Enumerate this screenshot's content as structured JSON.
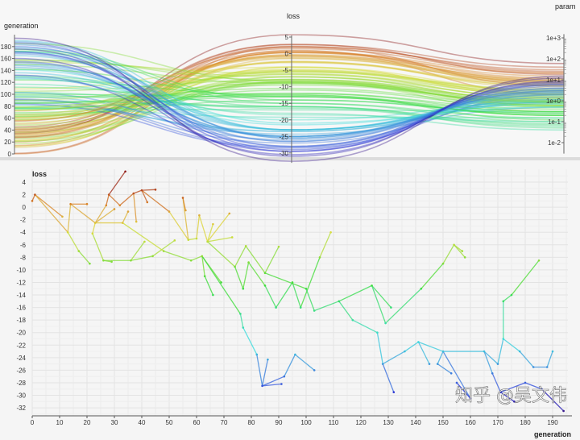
{
  "chart_data": [
    {
      "type": "parallel-coordinates",
      "axes": [
        {
          "label": "generation",
          "scale": "linear",
          "range": [
            0,
            200
          ],
          "ticks": [
            "0",
            "20",
            "40",
            "60",
            "80",
            "100",
            "120",
            "140",
            "160",
            "180"
          ]
        },
        {
          "label": "loss",
          "scale": "linear",
          "range": [
            -33,
            5
          ],
          "ticks": [
            "5",
            "0",
            "-5",
            "-10",
            "-15",
            "-20",
            "-25",
            "-30"
          ]
        },
        {
          "label": "param",
          "scale": "log",
          "range": [
            0.003,
            1000
          ],
          "ticks": [
            "1e+3",
            "1e+2",
            "1e+1",
            "1e+0",
            "1e-1",
            "1e-2"
          ]
        }
      ],
      "color_by": "loss",
      "colormap": "rainbow (red = high loss, blue/black = low loss)"
    },
    {
      "type": "scatter-tree",
      "xlabel": "generation",
      "ylabel": "loss",
      "xlim": [
        0,
        195
      ],
      "ylim": [
        -33,
        5
      ],
      "xticks": [
        "0",
        "10",
        "20",
        "30",
        "40",
        "50",
        "60",
        "70",
        "80",
        "90",
        "100",
        "110",
        "120",
        "130",
        "140",
        "150",
        "160",
        "170",
        "180",
        "190"
      ],
      "yticks": [
        "4",
        "2",
        "0",
        "-2",
        "-4",
        "-6",
        "-8",
        "-10",
        "-12",
        "-14",
        "-16",
        "-18",
        "-20",
        "-22",
        "-24",
        "-26",
        "-28",
        "-30",
        "-32"
      ],
      "grid": true,
      "color_by": "loss",
      "node_fields": [
        "generation",
        "loss",
        "param",
        "parent_index"
      ],
      "nodes": [
        [
          0,
          1,
          2,
          -1
        ],
        [
          1,
          2,
          5,
          0
        ],
        [
          11,
          -1.5,
          8,
          1
        ],
        [
          13,
          -4,
          3,
          1
        ],
        [
          14,
          0.5,
          12,
          3
        ],
        [
          20,
          0.5,
          20,
          4
        ],
        [
          23,
          -2.5,
          6,
          4
        ],
        [
          17,
          -7,
          1.5,
          3
        ],
        [
          21,
          -9,
          0.8,
          7
        ],
        [
          22,
          -4.2,
          2,
          6
        ],
        [
          26,
          -8.5,
          0.6,
          9
        ],
        [
          29,
          -8.7,
          0.3,
          10
        ],
        [
          36,
          -8.5,
          1.2,
          10
        ],
        [
          41,
          -5.5,
          2.5,
          12
        ],
        [
          44,
          -7.8,
          0.9,
          12
        ],
        [
          52,
          -5.3,
          1.8,
          14
        ],
        [
          27,
          0.3,
          15,
          6
        ],
        [
          28,
          2,
          30,
          16
        ],
        [
          34,
          5.7,
          60,
          17
        ],
        [
          32,
          0.3,
          9,
          17
        ],
        [
          37,
          2.2,
          25,
          19
        ],
        [
          40,
          2.7,
          40,
          20
        ],
        [
          45,
          2.8,
          18,
          21
        ],
        [
          42,
          0.8,
          7,
          21
        ],
        [
          38,
          -2.3,
          4,
          20
        ],
        [
          50,
          -0.7,
          6,
          21
        ],
        [
          57,
          -5.2,
          3,
          25
        ],
        [
          30,
          -0.3,
          10,
          6
        ],
        [
          33,
          -2.5,
          5,
          6
        ],
        [
          35,
          -0.7,
          8,
          28
        ],
        [
          48,
          -7,
          1,
          28
        ],
        [
          58,
          -8.5,
          0.7,
          30
        ],
        [
          62,
          -7.8,
          1.1,
          31
        ],
        [
          63,
          -11,
          0.5,
          32
        ],
        [
          66,
          -14,
          0.25,
          33
        ],
        [
          69,
          -12,
          0.4,
          32
        ],
        [
          76,
          -17,
          0.3,
          32
        ],
        [
          77,
          -19.2,
          0.15,
          36
        ],
        [
          82,
          -23.5,
          0.8,
          37
        ],
        [
          84,
          -28.5,
          2,
          38
        ],
        [
          86,
          -24.3,
          0.5,
          39
        ],
        [
          91,
          -28.2,
          4,
          39
        ],
        [
          92,
          -27,
          1.5,
          39
        ],
        [
          96,
          -23.5,
          0.9,
          42
        ],
        [
          103,
          -26,
          3,
          43
        ],
        [
          60,
          -5,
          2.2,
          26
        ],
        [
          61,
          -1.3,
          7,
          45
        ],
        [
          64,
          -5.5,
          3.5,
          46
        ],
        [
          66,
          -2.7,
          5,
          47
        ],
        [
          73,
          -4.8,
          2.8,
          47
        ],
        [
          72,
          -1,
          9,
          47
        ],
        [
          55,
          1.5,
          22,
          26
        ],
        [
          56,
          -0.5,
          11,
          51
        ],
        [
          74,
          -9.5,
          0.9,
          47
        ],
        [
          78,
          -6.2,
          2,
          53
        ],
        [
          85,
          -10.5,
          0.6,
          54
        ],
        [
          90,
          -6.3,
          1.4,
          55
        ],
        [
          77,
          -13,
          0.2,
          53
        ],
        [
          79,
          -8.8,
          0.5,
          57
        ],
        [
          85,
          -12.5,
          0.12,
          58
        ],
        [
          89,
          -16,
          0.08,
          59
        ],
        [
          95,
          -12,
          0.3,
          60
        ],
        [
          98,
          -16,
          0.05,
          61
        ],
        [
          105,
          -8,
          0.6,
          62
        ],
        [
          109,
          -4,
          1.6,
          63
        ],
        [
          100,
          -13,
          0.2,
          55
        ],
        [
          103,
          -16.5,
          0.06,
          65
        ],
        [
          112,
          -15,
          0.1,
          66
        ],
        [
          117,
          -18,
          0.04,
          67
        ],
        [
          124,
          -12.5,
          0.2,
          67
        ],
        [
          131,
          -16,
          0.07,
          69
        ],
        [
          126,
          -20,
          0.9,
          68
        ],
        [
          128,
          -25,
          3,
          71
        ],
        [
          132,
          -29.5,
          6,
          72
        ],
        [
          136,
          -23,
          1.2,
          72
        ],
        [
          141,
          -21.5,
          0.7,
          74
        ],
        [
          145,
          -25,
          2.5,
          75
        ],
        [
          150,
          -23,
          1.5,
          75
        ],
        [
          148,
          -25,
          2,
          77
        ],
        [
          129,
          -18.5,
          0.1,
          69
        ],
        [
          142,
          -13,
          0.3,
          79
        ],
        [
          150,
          -9,
          0.8,
          80
        ],
        [
          154,
          -6,
          1.3,
          81
        ],
        [
          158,
          -8,
          0.6,
          82
        ],
        [
          157,
          -7,
          1,
          82
        ],
        [
          165,
          -23,
          0.9,
          77
        ],
        [
          170,
          -25,
          2.2,
          85
        ],
        [
          172,
          -21,
          0.5,
          86
        ],
        [
          178,
          -23,
          1.8,
          87
        ],
        [
          183,
          -25.5,
          3.5,
          88
        ],
        [
          188,
          -25.5,
          2.6,
          89
        ],
        [
          190,
          -23,
          1.1,
          90
        ],
        [
          172,
          -15,
          0.15,
          87
        ],
        [
          175,
          -14,
          0.25,
          92
        ],
        [
          185,
          -8.5,
          0.9,
          93
        ],
        [
          168,
          -26.5,
          4,
          85
        ],
        [
          171,
          -29.5,
          8,
          95
        ],
        [
          176,
          -31,
          12,
          96
        ],
        [
          180,
          -28,
          5,
          96
        ],
        [
          186,
          -29,
          7,
          98
        ],
        [
          194,
          -32.5,
          15,
          99
        ],
        [
          160,
          -30.5,
          9,
          77
        ],
        [
          155,
          -28,
          6,
          101
        ],
        [
          153,
          -26.5,
          3,
          78
        ]
      ]
    }
  ],
  "watermark": "知乎 @吴文伟"
}
